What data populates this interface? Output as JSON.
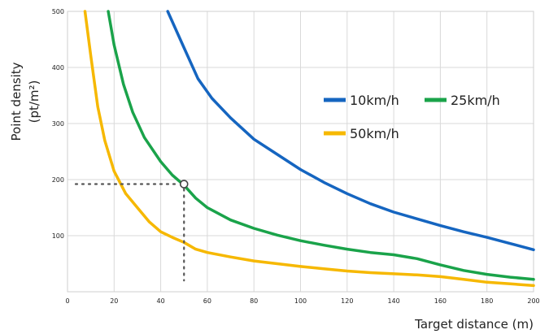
{
  "chart_data": {
    "type": "line",
    "title": "",
    "xlabel": "Target distance (m)",
    "ylabel_line1": "Point density",
    "ylabel_line2": "(pt/m²)",
    "xlim": [
      0,
      200
    ],
    "ylim": [
      0,
      500
    ],
    "x_ticks": [
      0,
      20,
      40,
      60,
      80,
      100,
      120,
      140,
      160,
      180,
      200
    ],
    "y_ticks": [
      100,
      200,
      300,
      400,
      500
    ],
    "grid": true,
    "legend_position": "right",
    "series": [
      {
        "name": "10km/h",
        "color": "#1565c0",
        "points": [
          [
            43,
            500
          ],
          [
            50,
            435
          ],
          [
            56,
            380
          ],
          [
            62,
            345
          ],
          [
            70,
            310
          ],
          [
            80,
            272
          ],
          [
            90,
            245
          ],
          [
            100,
            218
          ],
          [
            110,
            195
          ],
          [
            120,
            175
          ],
          [
            130,
            157
          ],
          [
            140,
            142
          ],
          [
            150,
            130
          ],
          [
            160,
            118
          ],
          [
            170,
            107
          ],
          [
            180,
            97
          ],
          [
            190,
            86
          ],
          [
            200,
            75
          ]
        ]
      },
      {
        "name": "25km/h",
        "color": "#1aa34a",
        "points": [
          [
            17.5,
            500
          ],
          [
            20,
            440
          ],
          [
            24,
            370
          ],
          [
            28,
            320
          ],
          [
            33,
            275
          ],
          [
            40,
            232
          ],
          [
            45,
            208
          ],
          [
            50,
            190
          ],
          [
            55,
            167
          ],
          [
            60,
            150
          ],
          [
            70,
            128
          ],
          [
            80,
            113
          ],
          [
            90,
            101
          ],
          [
            100,
            91
          ],
          [
            110,
            83
          ],
          [
            120,
            76
          ],
          [
            130,
            70
          ],
          [
            140,
            66
          ],
          [
            150,
            59
          ],
          [
            160,
            48
          ],
          [
            170,
            38
          ],
          [
            180,
            31
          ],
          [
            190,
            26
          ],
          [
            200,
            22
          ]
        ]
      },
      {
        "name": "50km/h",
        "color": "#f6b800",
        "points": [
          [
            7.5,
            500
          ],
          [
            10,
            420
          ],
          [
            13,
            330
          ],
          [
            16,
            270
          ],
          [
            20,
            215
          ],
          [
            25,
            175
          ],
          [
            30,
            150
          ],
          [
            35,
            125
          ],
          [
            40,
            107
          ],
          [
            45,
            97
          ],
          [
            50,
            88
          ],
          [
            55,
            76
          ],
          [
            60,
            70
          ],
          [
            70,
            62
          ],
          [
            80,
            55
          ],
          [
            90,
            50
          ],
          [
            100,
            45
          ],
          [
            110,
            41
          ],
          [
            120,
            37
          ],
          [
            130,
            34
          ],
          [
            140,
            32
          ],
          [
            150,
            30
          ],
          [
            160,
            27
          ],
          [
            170,
            22
          ],
          [
            180,
            17
          ],
          [
            190,
            14
          ],
          [
            200,
            11
          ]
        ]
      }
    ],
    "annotation": {
      "x": 50,
      "y": 192,
      "y_range": [
        20,
        192
      ]
    }
  }
}
